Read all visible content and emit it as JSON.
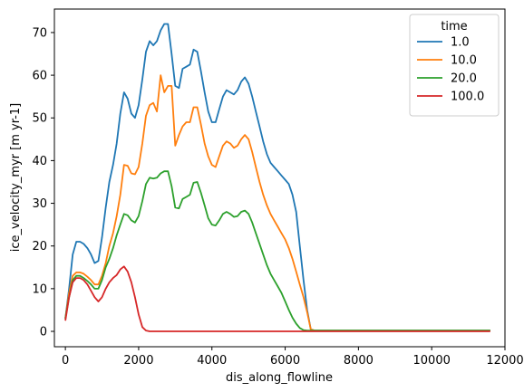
{
  "chart_data": {
    "type": "line",
    "title": "",
    "xlabel": "dis_along_flowline",
    "ylabel": "ice_velocity_myr [m yr-1]",
    "xlim": [
      -300,
      12000
    ],
    "ylim": [
      -3.6,
      75.5
    ],
    "xticks": [
      0,
      2000,
      4000,
      6000,
      8000,
      10000,
      12000
    ],
    "yticks": [
      0,
      10,
      20,
      30,
      40,
      50,
      60,
      70
    ],
    "grid": false,
    "legend": {
      "title": "time",
      "placement": "top-right"
    },
    "series": [
      {
        "name": "1.0",
        "color": "#1f77b4",
        "x": [
          0,
          100,
          200,
          300,
          400,
          500,
          600,
          700,
          800,
          900,
          1000,
          1100,
          1200,
          1300,
          1400,
          1500,
          1600,
          1700,
          1800,
          1900,
          2000,
          2100,
          2200,
          2300,
          2400,
          2500,
          2600,
          2700,
          2800,
          2900,
          3000,
          3100,
          3200,
          3300,
          3400,
          3500,
          3600,
          3700,
          3800,
          3900,
          4000,
          4100,
          4200,
          4300,
          4400,
          4500,
          4600,
          4700,
          4800,
          4900,
          5000,
          5100,
          5200,
          5300,
          5400,
          5500,
          5600,
          5700,
          5800,
          5900,
          6000,
          6100,
          6200,
          6300,
          6400,
          6500,
          6600,
          6700,
          6800,
          7000,
          8000,
          9000,
          10000,
          11000,
          11600
        ],
        "values": [
          3,
          10,
          18,
          21,
          21,
          20.5,
          19.5,
          18,
          16,
          16.5,
          22,
          29,
          35,
          39,
          44,
          51,
          56,
          54.5,
          51,
          50,
          53,
          59,
          65.5,
          68,
          67,
          68,
          70.5,
          72,
          72,
          65,
          57.5,
          57,
          61.5,
          62,
          62.5,
          66,
          65.5,
          61,
          56,
          51.5,
          49,
          49,
          52,
          55,
          56.5,
          56,
          55.5,
          56.5,
          58.5,
          59.5,
          58,
          55,
          51.5,
          48,
          44.5,
          41.5,
          39.5,
          38.5,
          37.5,
          36.5,
          35.5,
          34.5,
          32,
          28,
          20,
          12,
          5,
          0.5,
          0.2,
          0.2,
          0.2,
          0.2,
          0.2,
          0.2,
          0.2
        ]
      },
      {
        "name": "10.0",
        "color": "#ff7f0e",
        "x": [
          0,
          100,
          200,
          300,
          400,
          500,
          600,
          700,
          800,
          900,
          1000,
          1100,
          1200,
          1300,
          1400,
          1500,
          1600,
          1700,
          1800,
          1900,
          2000,
          2100,
          2200,
          2300,
          2400,
          2500,
          2600,
          2700,
          2800,
          2900,
          3000,
          3100,
          3200,
          3300,
          3400,
          3500,
          3600,
          3700,
          3800,
          3900,
          4000,
          4100,
          4200,
          4300,
          4400,
          4500,
          4600,
          4700,
          4800,
          4900,
          5000,
          5100,
          5200,
          5300,
          5400,
          5500,
          5600,
          5700,
          5800,
          5900,
          6000,
          6100,
          6200,
          6300,
          6400,
          6500,
          6600,
          6700,
          6800,
          7000,
          8000,
          9000,
          10000,
          11000,
          11600
        ],
        "values": [
          3,
          9,
          13,
          13.8,
          13.8,
          13.5,
          12.8,
          12,
          11,
          11,
          13,
          16,
          20,
          23,
          27,
          32,
          39,
          38.8,
          37,
          36.8,
          38.5,
          44,
          50.5,
          53,
          53.5,
          51.5,
          60,
          56,
          57.5,
          57.5,
          43.5,
          46,
          48,
          49,
          49,
          52.5,
          52.5,
          48.5,
          44,
          41,
          39,
          38.5,
          41,
          43.5,
          44.5,
          44,
          43,
          43.5,
          45,
          46,
          45,
          42,
          38.5,
          35,
          32,
          29.5,
          27.5,
          26,
          24.5,
          23,
          21.5,
          19.5,
          17,
          14,
          11,
          8,
          4.5,
          0.5,
          0.2,
          0.2,
          0.2,
          0.2,
          0.2,
          0.2,
          0.2
        ]
      },
      {
        "name": "20.0",
        "color": "#2ca02c",
        "x": [
          0,
          100,
          200,
          300,
          400,
          500,
          600,
          700,
          800,
          900,
          1000,
          1100,
          1200,
          1300,
          1400,
          1500,
          1600,
          1700,
          1800,
          1900,
          2000,
          2100,
          2200,
          2300,
          2400,
          2500,
          2600,
          2700,
          2800,
          2900,
          3000,
          3100,
          3200,
          3300,
          3400,
          3500,
          3600,
          3700,
          3800,
          3900,
          4000,
          4100,
          4200,
          4300,
          4400,
          4500,
          4600,
          4700,
          4800,
          4900,
          5000,
          5100,
          5200,
          5300,
          5400,
          5500,
          5600,
          5700,
          5800,
          5900,
          6000,
          6100,
          6200,
          6300,
          6400,
          6500,
          6600,
          6700,
          6800,
          7000,
          8000,
          9000,
          10000,
          11000,
          11600
        ],
        "values": [
          3,
          8,
          12,
          13,
          13,
          12.5,
          11.8,
          11,
          10,
          10,
          12,
          15,
          17,
          19.5,
          22.5,
          25,
          27.5,
          27.2,
          26,
          25.5,
          27,
          30.5,
          34.5,
          36,
          35.8,
          36,
          37,
          37.5,
          37.5,
          34,
          29,
          28.8,
          31,
          31.5,
          32,
          34.8,
          35,
          32.5,
          29.5,
          26.5,
          25,
          24.8,
          26,
          27.5,
          28,
          27.5,
          26.8,
          27,
          28,
          28.3,
          27.5,
          25.5,
          23,
          20.5,
          18,
          15.5,
          13.5,
          12,
          10.5,
          9,
          7,
          5,
          3.2,
          1.8,
          0.8,
          0.3,
          0.2,
          0.2,
          0.2,
          0.2,
          0.2,
          0.2,
          0.2,
          0.2,
          0.2
        ]
      },
      {
        "name": "100.0",
        "color": "#d62728",
        "x": [
          0,
          100,
          200,
          300,
          400,
          500,
          600,
          700,
          800,
          900,
          1000,
          1100,
          1200,
          1300,
          1400,
          1500,
          1600,
          1700,
          1800,
          1900,
          2000,
          2100,
          2200,
          2300,
          2400,
          2500,
          3000,
          4000,
          5000,
          6000,
          7000,
          8000,
          9000,
          10000,
          11000,
          11600
        ],
        "values": [
          2.5,
          8,
          11.5,
          12.5,
          12.5,
          12,
          11,
          9.5,
          8,
          7,
          8,
          10,
          11.5,
          12.5,
          13.2,
          14.5,
          15.2,
          14,
          11.5,
          8,
          4,
          1,
          0.2,
          0,
          0,
          0,
          0,
          0,
          0,
          0,
          0,
          0,
          0,
          0,
          0,
          0
        ]
      }
    ]
  }
}
